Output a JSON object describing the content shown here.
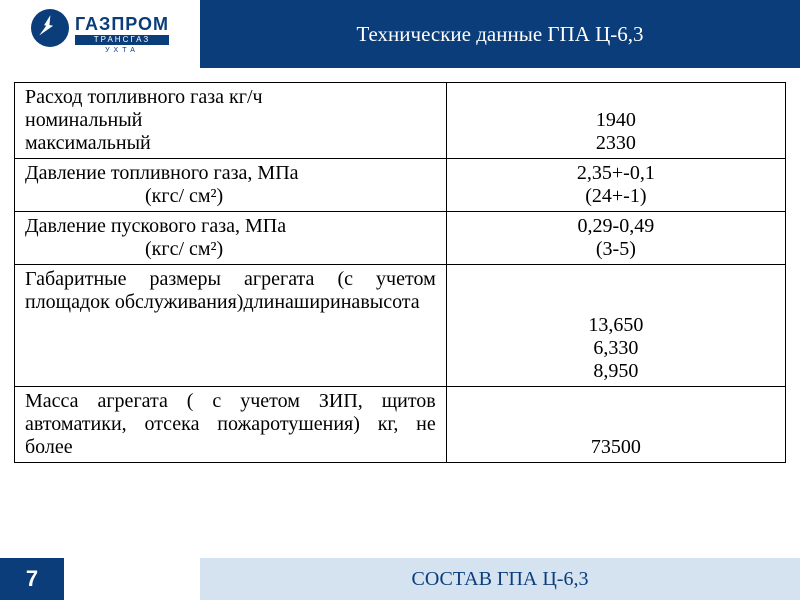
{
  "logo": {
    "main": "ГАЗПРОМ",
    "sub": "ТРАНСГАЗ",
    "sub2": "УХТА"
  },
  "header": {
    "title": "Технические данные ГПА Ц-6,3"
  },
  "table": {
    "rows": [
      {
        "label_lines": [
          "Расход топливного газа кг/ч",
          "номинальный",
          "максимальный"
        ],
        "value_lines": [
          "",
          "1940",
          "2330"
        ],
        "label_indent": false,
        "justify": false
      },
      {
        "label_lines": [
          "Давление топливного газа, МПа",
          "(кгс/ см²)"
        ],
        "value_lines": [
          "2,35+-0,1",
          "(24+-1)"
        ],
        "label_indent": true,
        "justify": false
      },
      {
        "label_lines": [
          "Давление пускового газа, МПа",
          "(кгс/ см²)"
        ],
        "value_lines": [
          "0,29-0,49",
          "(3-5)"
        ],
        "label_indent": true,
        "justify": false
      },
      {
        "label_lines": [
          "Габаритные размеры агрегата (с учетом площадок обслуживания)",
          "длина",
          "ширина",
          "высота"
        ],
        "value_lines": [
          "",
          "",
          "13,650",
          "6,330",
          "8,950"
        ],
        "label_indent": false,
        "justify": true
      },
      {
        "label_lines": [
          "Масса агрегата ( с учетом ЗИП, щитов автоматики, отсека пожаротушения) кг, не более"
        ],
        "value_lines": [
          "",
          "",
          "73500"
        ],
        "label_indent": false,
        "justify": true
      }
    ]
  },
  "footer": {
    "page": "7",
    "next": "СОСТАВ ГПА Ц-6,3"
  },
  "colors": {
    "primary": "#0a3d7a",
    "footer_bg": "#d5e3f1",
    "text": "#000000",
    "white": "#ffffff"
  }
}
